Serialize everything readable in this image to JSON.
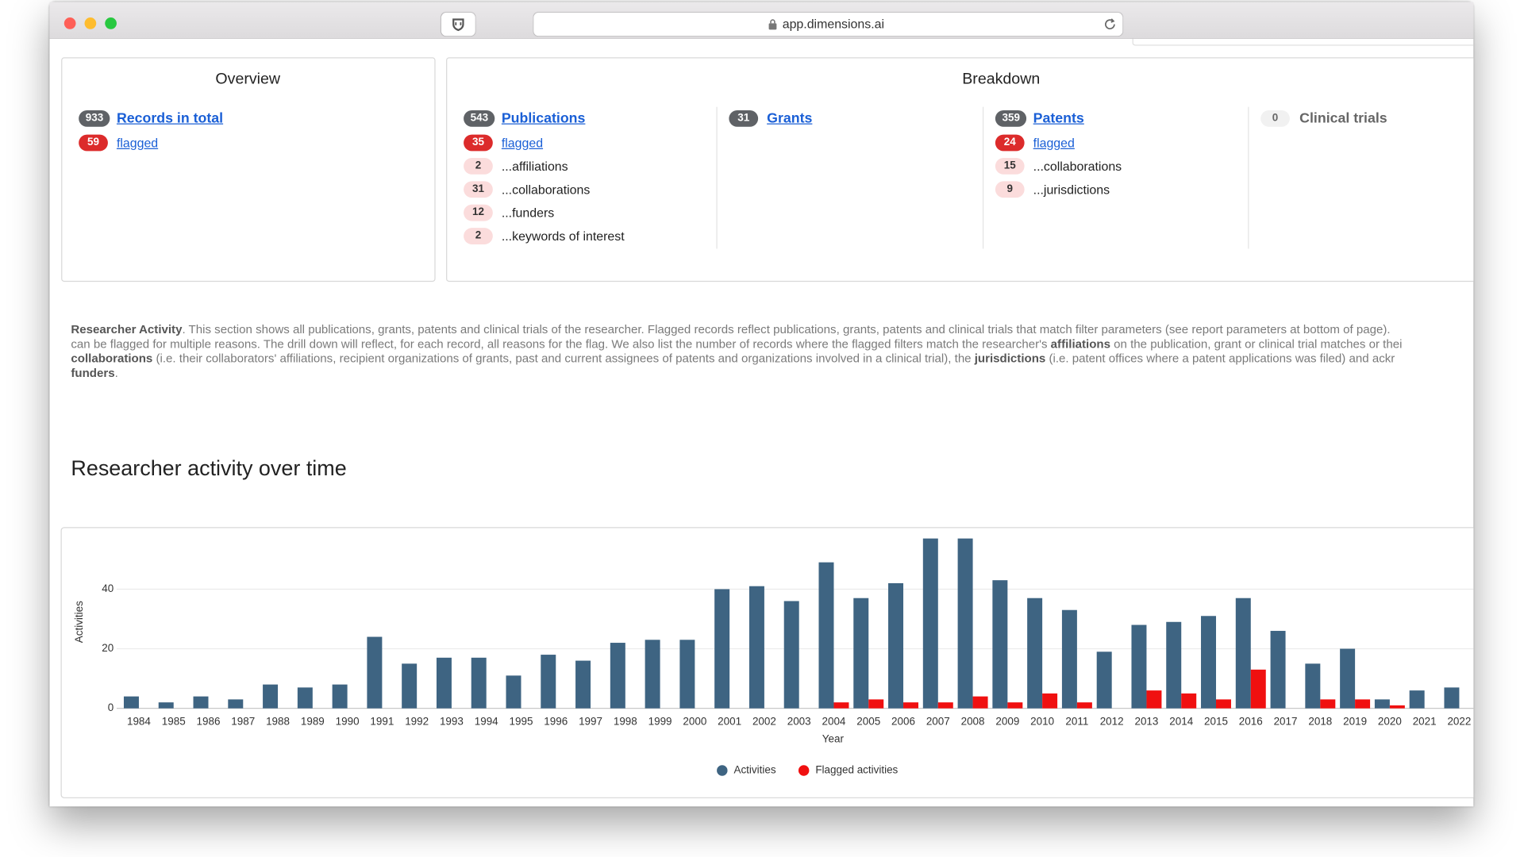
{
  "browser": {
    "url": "app.dimensions.ai"
  },
  "overview": {
    "title": "Overview",
    "rows": [
      {
        "count": 933,
        "label": "Records in total"
      },
      {
        "count": 59,
        "label": "flagged"
      }
    ]
  },
  "breakdown": {
    "title": "Breakdown",
    "columns": [
      {
        "count": 543,
        "label": "Publications",
        "rows": [
          {
            "count": 35,
            "label": "flagged"
          },
          {
            "count": 2,
            "label": "...affiliations"
          },
          {
            "count": 31,
            "label": "...collaborations"
          },
          {
            "count": 12,
            "label": "...funders"
          },
          {
            "count": 2,
            "label": "...keywords of interest"
          }
        ]
      },
      {
        "count": 31,
        "label": "Grants",
        "rows": []
      },
      {
        "count": 359,
        "label": "Patents",
        "rows": [
          {
            "count": 24,
            "label": "flagged"
          },
          {
            "count": 15,
            "label": "...collaborations"
          },
          {
            "count": 9,
            "label": "...jurisdictions"
          }
        ]
      },
      {
        "count": 0,
        "label": "Clinical trials",
        "rows": []
      }
    ]
  },
  "description": {
    "lines": [
      [
        {
          "text": "Researcher Activity",
          "bold": true
        },
        {
          "text": ". This section shows all publications, grants, patents and clinical trials of the researcher. Flagged records reflect publications, grants, patents and clinical trials that match filter parameters (see report parameters at bottom of page).",
          "bold": false
        }
      ],
      [
        {
          "text": "can be flagged for multiple reasons. The drill down will reflect, for each record, all reasons for the flag. We also list the number of records where the flagged filters match the researcher's ",
          "bold": false
        },
        {
          "text": "affiliations",
          "bold": true
        },
        {
          "text": " on the publication, grant or clinical trial matches or thei",
          "bold": false
        }
      ],
      [
        {
          "text": "collaborations",
          "bold": true
        },
        {
          "text": " (i.e. their collaborators' affiliations, recipient organizations of grants, past and current assignees of patents and organizations involved in a clinical trial), the ",
          "bold": false
        },
        {
          "text": "jurisdictions",
          "bold": true
        },
        {
          "text": " (i.e. patent offices where a patent applications was filed) and ackr",
          "bold": false
        }
      ],
      [
        {
          "text": "funders",
          "bold": true
        },
        {
          "text": ".",
          "bold": false
        }
      ]
    ]
  },
  "chart_data": {
    "type": "bar",
    "title": "Researcher activity over time",
    "x_label": "Year",
    "y_label": "Activities",
    "categories": [
      "1984",
      "1985",
      "1986",
      "1987",
      "1988",
      "1989",
      "1990",
      "1991",
      "1992",
      "1993",
      "1994",
      "1995",
      "1996",
      "1997",
      "1998",
      "1999",
      "2000",
      "2001",
      "2002",
      "2003",
      "2004",
      "2005",
      "2006",
      "2007",
      "2008",
      "2009",
      "2010",
      "2011",
      "2012",
      "2013",
      "2014",
      "2015",
      "2016",
      "2017",
      "2018",
      "2019",
      "2020",
      "2021",
      "2022"
    ],
    "series": [
      {
        "name": "Activities",
        "color": "#3e6482",
        "values": [
          4,
          2,
          4,
          3,
          8,
          7,
          8,
          24,
          15,
          17,
          17,
          11,
          18,
          16,
          22,
          23,
          23,
          40,
          41,
          36,
          49,
          37,
          42,
          57,
          57,
          43,
          37,
          33,
          19,
          28,
          29,
          31,
          37,
          26,
          15,
          20,
          3,
          6,
          7
        ]
      },
      {
        "name": "Flagged activities",
        "color": "#f01010",
        "values": [
          0,
          0,
          0,
          0,
          0,
          0,
          0,
          0,
          0,
          0,
          0,
          0,
          0,
          0,
          0,
          0,
          0,
          0,
          0,
          0,
          2,
          3,
          2,
          2,
          4,
          2,
          5,
          2,
          0,
          6,
          5,
          3,
          13,
          0,
          3,
          3,
          1,
          0,
          0
        ]
      }
    ],
    "ylim": [
      0,
      60
    ],
    "yticks": [
      0,
      20,
      40
    ],
    "grid": true
  }
}
